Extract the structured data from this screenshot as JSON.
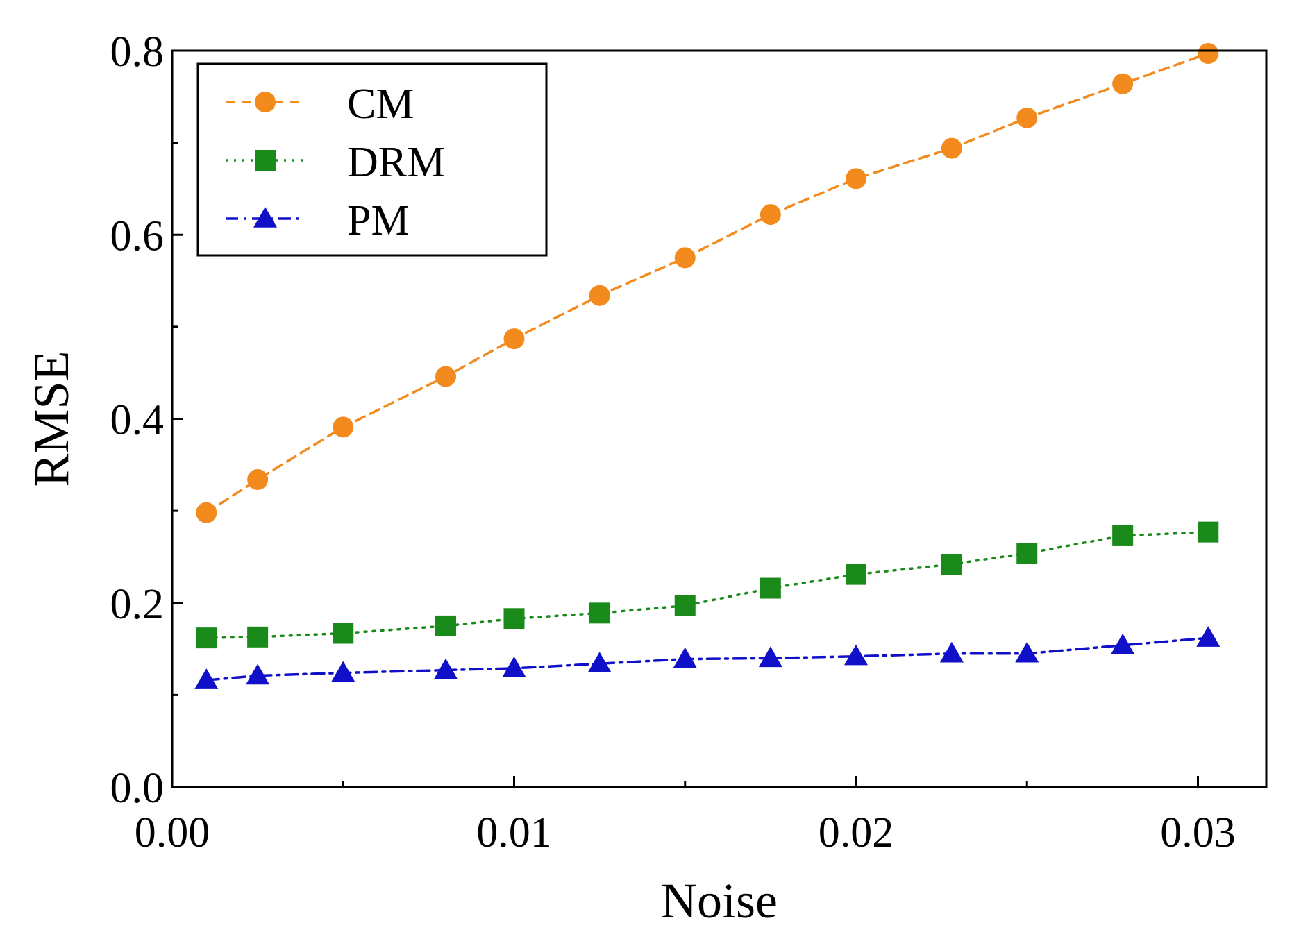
{
  "chart_data": {
    "type": "line",
    "title": "",
    "xlabel": "Noise",
    "ylabel": "RMSE",
    "xlim": [
      0.0,
      0.032
    ],
    "ylim": [
      0.0,
      0.8
    ],
    "x_ticks": [
      0.0,
      0.01,
      0.02,
      0.03
    ],
    "x_tick_labels": [
      "0.00",
      "0.01",
      "0.02",
      "0.03"
    ],
    "x_minor_ticks": [
      0.005,
      0.015,
      0.025
    ],
    "y_ticks": [
      0.0,
      0.2,
      0.4,
      0.6,
      0.8
    ],
    "y_tick_labels": [
      "0.0",
      "0.2",
      "0.4",
      "0.6",
      "0.8"
    ],
    "y_minor_ticks": [
      0.1,
      0.3,
      0.5,
      0.7
    ],
    "grid": false,
    "legend_position": "top-left",
    "x": [
      0.001,
      0.0025,
      0.005,
      0.008,
      0.01,
      0.0125,
      0.015,
      0.0175,
      0.02,
      0.0228,
      0.025,
      0.0278,
      0.0303
    ],
    "series": [
      {
        "name": "CM",
        "color": "#F28A1E",
        "marker": "circle",
        "line_style": "dashed",
        "values": [
          0.298,
          0.334,
          0.391,
          0.446,
          0.487,
          0.534,
          0.575,
          0.622,
          0.661,
          0.694,
          0.727,
          0.764,
          0.797
        ]
      },
      {
        "name": "DRM",
        "color": "#1A8A1A",
        "marker": "square",
        "line_style": "dotted",
        "values": [
          0.162,
          0.163,
          0.167,
          0.175,
          0.183,
          0.189,
          0.197,
          0.216,
          0.231,
          0.242,
          0.254,
          0.273,
          0.277
        ]
      },
      {
        "name": "PM",
        "color": "#1010C8",
        "marker": "triangle",
        "line_style": "dashdot",
        "values": [
          0.116,
          0.121,
          0.124,
          0.127,
          0.129,
          0.134,
          0.139,
          0.14,
          0.142,
          0.145,
          0.145,
          0.154,
          0.162
        ]
      }
    ]
  }
}
